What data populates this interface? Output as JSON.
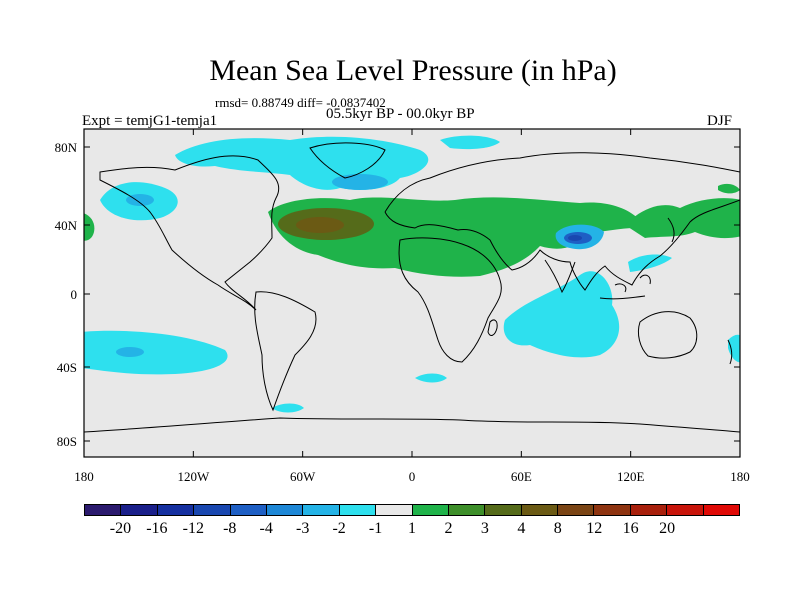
{
  "title": "Mean Sea Level Pressure (in hPa)",
  "stats_line": "rmsd= 0.88749 diff= -0.0837402",
  "period": "05.5kyr BP - 00.0kyr BP",
  "experiment": "Expt = temjG1-temja1",
  "season": "DJF",
  "map": {
    "lon_labels": [
      "180",
      "120W",
      "60W",
      "0",
      "60E",
      "120E",
      "180"
    ],
    "lat_labels": [
      "80N",
      "40N",
      "0",
      "40S",
      "80S"
    ],
    "background_color": "#e8e8e8"
  },
  "colorbar": {
    "colors": [
      "#2b1a6e",
      "#1a1f8a",
      "#1630a0",
      "#1947b0",
      "#1e5fc4",
      "#1d87d6",
      "#24b3e6",
      "#2ee0ee",
      "#e8e8e8",
      "#1fb34a",
      "#3e8f2a",
      "#556b1a",
      "#6b5a14",
      "#7a4414",
      "#8e3410",
      "#a8200c",
      "#c8140a",
      "#e00a06"
    ],
    "labels": [
      "-20",
      "-16",
      "-12",
      "-8",
      "-4",
      "-3",
      "-2",
      "-1",
      "1",
      "2",
      "3",
      "4",
      "8",
      "12",
      "16",
      "20"
    ]
  }
}
